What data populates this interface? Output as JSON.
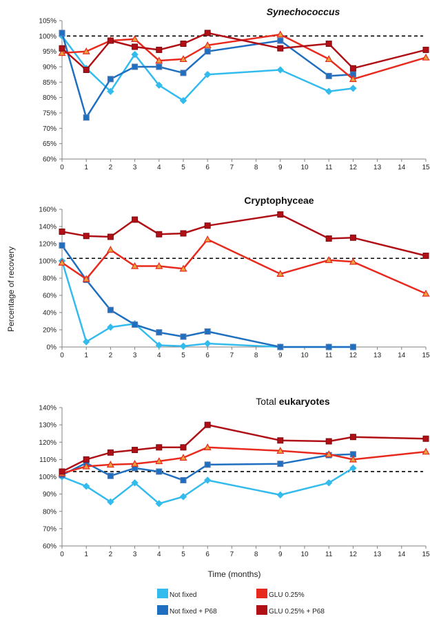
{
  "ylabel": "Percentage of recovery",
  "xlabel": "Time (months)",
  "colors": {
    "not_fixed": "#33bbee",
    "not_fixed_p68": "#1f6fc0",
    "glu": "#e82a1e",
    "glu_p68": "#b01015",
    "reference": "#000000"
  },
  "legend": [
    {
      "name": "Not fixed",
      "color_key": "not_fixed"
    },
    {
      "name": "GLU 0.25%",
      "color_key": "glu"
    },
    {
      "name": "Not fixed + P68",
      "color_key": "not_fixed_p68"
    },
    {
      "name": "GLU 0.25% + P68",
      "color_key": "glu_p68"
    }
  ],
  "chart_data": [
    {
      "type": "line",
      "title": "Synechococcus",
      "title_style": "bold-italic",
      "xticks": [
        0,
        1,
        2,
        3,
        4,
        5,
        6,
        7,
        8,
        9,
        10,
        11,
        12,
        13,
        14,
        15
      ],
      "yticks": [
        60,
        65,
        70,
        75,
        80,
        85,
        90,
        95,
        100,
        105
      ],
      "ylim": [
        60,
        105
      ],
      "reference_line": 100,
      "series": [
        {
          "name": "Not fixed",
          "marker": "diamond",
          "x": [
            0,
            1,
            2,
            3,
            4,
            5,
            6,
            9,
            11,
            12
          ],
          "y": [
            100,
            89.5,
            82,
            94,
            84,
            79,
            87.5,
            89,
            82,
            83
          ]
        },
        {
          "name": "Not fixed + P68",
          "marker": "square",
          "x": [
            0,
            1,
            2,
            3,
            4,
            5,
            6,
            9,
            11,
            12
          ],
          "y": [
            101,
            73.5,
            86,
            90,
            90,
            88,
            95,
            98.5,
            87,
            87.5
          ]
        },
        {
          "name": "GLU 0.25%",
          "marker": "triangle",
          "x": [
            0,
            1,
            2,
            3,
            4,
            5,
            6,
            9,
            11,
            12,
            15
          ],
          "y": [
            94.5,
            95,
            98.5,
            99,
            92,
            92.5,
            97,
            100.5,
            92.5,
            86,
            93
          ]
        },
        {
          "name": "GLU 0.25% + P68",
          "marker": "square",
          "x": [
            0,
            1,
            2,
            3,
            4,
            5,
            6,
            9,
            11,
            12,
            15
          ],
          "y": [
            96,
            89,
            98.5,
            96.5,
            95.5,
            97.5,
            101,
            96,
            97.5,
            89.5,
            95.5
          ]
        }
      ]
    },
    {
      "type": "line",
      "title": "Cryptophyceae",
      "title_style": "bold",
      "xticks": [
        0,
        1,
        2,
        3,
        4,
        5,
        6,
        7,
        8,
        9,
        10,
        11,
        12,
        13,
        14,
        15
      ],
      "yticks": [
        0,
        20,
        40,
        60,
        80,
        100,
        120,
        140,
        160
      ],
      "ylim": [
        0,
        160
      ],
      "reference_line": 103,
      "series": [
        {
          "name": "Not fixed",
          "marker": "diamond",
          "x": [
            0,
            1,
            2,
            3,
            4,
            5,
            6,
            9,
            11,
            12
          ],
          "y": [
            100,
            6,
            23,
            27,
            2,
            1,
            4,
            0,
            0,
            0
          ]
        },
        {
          "name": "Not fixed + P68",
          "marker": "square",
          "x": [
            0,
            1,
            2,
            3,
            4,
            5,
            6,
            9,
            11,
            12
          ],
          "y": [
            118,
            78,
            43,
            26,
            17,
            12,
            18,
            0,
            0,
            0
          ]
        },
        {
          "name": "GLU 0.25%",
          "marker": "triangle",
          "x": [
            0,
            1,
            2,
            3,
            4,
            5,
            6,
            9,
            11,
            12,
            15
          ],
          "y": [
            98,
            79,
            113,
            94,
            94,
            91,
            125,
            85,
            101,
            99,
            62
          ]
        },
        {
          "name": "GLU 0.25% + P68",
          "marker": "square",
          "x": [
            0,
            1,
            2,
            3,
            4,
            5,
            6,
            9,
            11,
            12,
            15
          ],
          "y": [
            134,
            129,
            128,
            148,
            131,
            132,
            141,
            154,
            126,
            127,
            106
          ]
        }
      ]
    },
    {
      "type": "line",
      "title_prefix": "Total ",
      "title_emphasis": "eukaryotes",
      "xticks": [
        0,
        1,
        2,
        3,
        4,
        5,
        6,
        7,
        8,
        9,
        10,
        11,
        12,
        13,
        14,
        15
      ],
      "yticks": [
        60,
        70,
        80,
        90,
        100,
        110,
        120,
        130,
        140
      ],
      "ylim": [
        60,
        140
      ],
      "reference_line": 103,
      "series": [
        {
          "name": "Not fixed",
          "marker": "diamond",
          "x": [
            0,
            1,
            2,
            3,
            4,
            5,
            6,
            9,
            11,
            12
          ],
          "y": [
            100,
            94.5,
            85.5,
            96.5,
            84.5,
            88.5,
            98,
            89.5,
            96.5,
            105
          ]
        },
        {
          "name": "Not fixed + P68",
          "marker": "square",
          "x": [
            0,
            1,
            2,
            3,
            4,
            5,
            6,
            9,
            11,
            12
          ],
          "y": [
            101,
            108,
            100.5,
            105,
            103,
            98,
            107,
            107.5,
            112.5,
            113
          ]
        },
        {
          "name": "GLU 0.25%",
          "marker": "triangle",
          "x": [
            0,
            1,
            2,
            3,
            4,
            5,
            6,
            9,
            11,
            12,
            15
          ],
          "y": [
            102,
            106,
            107,
            107.5,
            109,
            111,
            117,
            115,
            113,
            110,
            114.5
          ]
        },
        {
          "name": "GLU 0.25% + P68",
          "marker": "square",
          "x": [
            0,
            1,
            2,
            3,
            4,
            5,
            6,
            9,
            11,
            12,
            15
          ],
          "y": [
            103,
            110,
            114,
            115.5,
            117,
            117,
            130,
            121,
            120.5,
            123,
            122
          ]
        }
      ]
    }
  ]
}
